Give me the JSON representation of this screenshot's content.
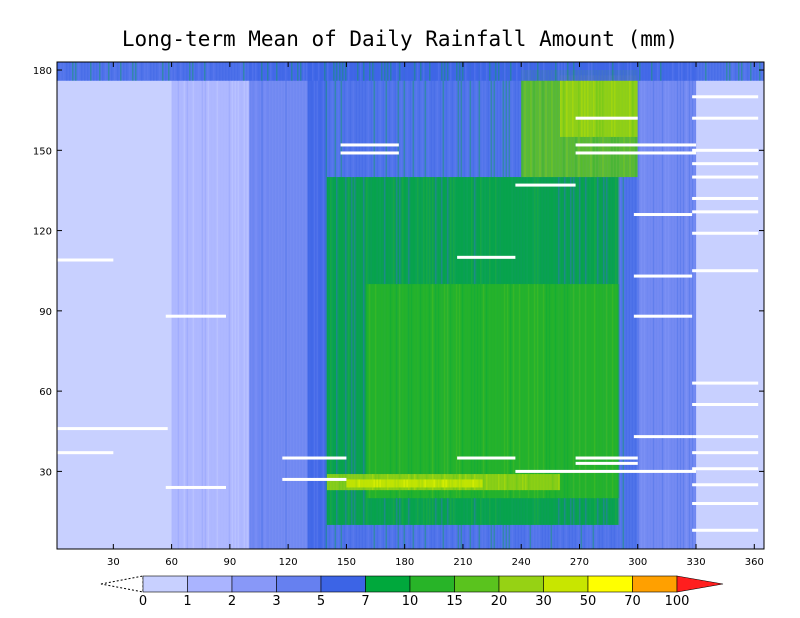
{
  "chart_data": {
    "type": "heatmap",
    "title": "Long-term Mean of Daily Rainfall Amount (mm)",
    "xlabel": "",
    "ylabel": "",
    "xlim": [
      1,
      365
    ],
    "ylim": [
      1,
      183
    ],
    "x_ticks": [
      30,
      60,
      90,
      120,
      150,
      180,
      210,
      240,
      270,
      300,
      330,
      360
    ],
    "y_ticks": [
      30,
      60,
      90,
      120,
      150,
      180
    ],
    "grid": false,
    "colorbar": {
      "orientation": "horizontal",
      "levels": [
        "0",
        "1",
        "2",
        "3",
        "5",
        "7",
        "10",
        "15",
        "20",
        "30",
        "50",
        "70",
        "100"
      ],
      "colors": [
        "#c8d0ff",
        "#aab4ff",
        "#8898f8",
        "#6680f0",
        "#3c64e6",
        "#00a83c",
        "#28b428",
        "#5ac31e",
        "#96d214",
        "#c8e600",
        "#ffff00",
        "#ffa000",
        "#ff1e1e"
      ]
    },
    "background_level": "#c8d0ff",
    "regions": [
      {
        "x0": 60,
        "x1": 110,
        "y0": 1,
        "y1": 183,
        "level": 1
      },
      {
        "x0": 100,
        "x1": 140,
        "y0": 1,
        "y1": 183,
        "level": 3
      },
      {
        "x0": 130,
        "x1": 300,
        "y0": 1,
        "y1": 183,
        "level": 4
      },
      {
        "x0": 140,
        "x1": 290,
        "y0": 10,
        "y1": 140,
        "level": 5
      },
      {
        "x0": 160,
        "x1": 290,
        "y0": 20,
        "y1": 100,
        "level": 6
      },
      {
        "x0": 240,
        "x1": 300,
        "y0": 140,
        "y1": 180,
        "level": 7
      },
      {
        "x0": 260,
        "x1": 300,
        "y0": 155,
        "y1": 178,
        "level": 8
      },
      {
        "x0": 300,
        "x1": 330,
        "y0": 1,
        "y1": 183,
        "level": 3
      },
      {
        "x0": 1,
        "x1": 365,
        "y0": 176,
        "y1": 183,
        "level": 4
      },
      {
        "x0": 140,
        "x1": 260,
        "y0": 23,
        "y1": 29,
        "level": 8
      },
      {
        "x0": 150,
        "x1": 220,
        "y0": 24,
        "y1": 27,
        "level": 9
      }
    ],
    "missing_segments": [
      {
        "x0": 1,
        "x1": 30,
        "y": 109
      },
      {
        "x0": 1,
        "x1": 58,
        "y": 46
      },
      {
        "x0": 1,
        "x1": 30,
        "y": 37
      },
      {
        "x0": 57,
        "x1": 88,
        "y": 88
      },
      {
        "x0": 57,
        "x1": 88,
        "y": 24
      },
      {
        "x0": 117,
        "x1": 150,
        "y": 35
      },
      {
        "x0": 117,
        "x1": 150,
        "y": 27
      },
      {
        "x0": 147,
        "x1": 177,
        "y": 152
      },
      {
        "x0": 147,
        "x1": 177,
        "y": 149
      },
      {
        "x0": 207,
        "x1": 237,
        "y": 110
      },
      {
        "x0": 207,
        "x1": 237,
        "y": 35
      },
      {
        "x0": 237,
        "x1": 268,
        "y": 137
      },
      {
        "x0": 237,
        "x1": 330,
        "y": 30
      },
      {
        "x0": 268,
        "x1": 300,
        "y": 162
      },
      {
        "x0": 268,
        "x1": 330,
        "y": 152
      },
      {
        "x0": 268,
        "x1": 330,
        "y": 149
      },
      {
        "x0": 268,
        "x1": 300,
        "y": 35
      },
      {
        "x0": 268,
        "x1": 300,
        "y": 33
      },
      {
        "x0": 298,
        "x1": 328,
        "y": 126
      },
      {
        "x0": 298,
        "x1": 328,
        "y": 103
      },
      {
        "x0": 298,
        "x1": 328,
        "y": 88
      },
      {
        "x0": 298,
        "x1": 328,
        "y": 43
      },
      {
        "x0": 328,
        "x1": 362,
        "y": 170
      },
      {
        "x0": 328,
        "x1": 362,
        "y": 162
      },
      {
        "x0": 328,
        "x1": 362,
        "y": 150
      },
      {
        "x0": 328,
        "x1": 362,
        "y": 145
      },
      {
        "x0": 328,
        "x1": 362,
        "y": 140
      },
      {
        "x0": 328,
        "x1": 362,
        "y": 132
      },
      {
        "x0": 328,
        "x1": 362,
        "y": 127
      },
      {
        "x0": 328,
        "x1": 362,
        "y": 119
      },
      {
        "x0": 328,
        "x1": 362,
        "y": 105
      },
      {
        "x0": 328,
        "x1": 362,
        "y": 63
      },
      {
        "x0": 328,
        "x1": 362,
        "y": 55
      },
      {
        "x0": 328,
        "x1": 362,
        "y": 43
      },
      {
        "x0": 328,
        "x1": 362,
        "y": 37
      },
      {
        "x0": 328,
        "x1": 362,
        "y": 31
      },
      {
        "x0": 328,
        "x1": 362,
        "y": 25
      },
      {
        "x0": 328,
        "x1": 362,
        "y": 18
      },
      {
        "x0": 328,
        "x1": 362,
        "y": 8
      }
    ]
  }
}
